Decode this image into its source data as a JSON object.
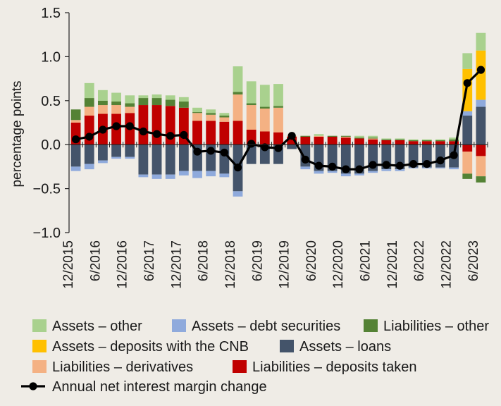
{
  "chart_data": {
    "type": "bar",
    "stacked": true,
    "ylabel": "percentage points",
    "ylim": [
      -1.0,
      1.5
    ],
    "yticks": [
      -1.0,
      -0.5,
      0.0,
      0.5,
      1.0,
      1.5
    ],
    "ytick_labels": [
      "−1.0",
      "−0.5",
      "0.0",
      "0.5",
      "1.0",
      "1.5"
    ],
    "categories": [
      "12/2015",
      "3/2016",
      "6/2016",
      "9/2016",
      "12/2016",
      "3/2017",
      "6/2017",
      "9/2017",
      "12/2017",
      "3/2018",
      "6/2018",
      "9/2018",
      "12/2018",
      "3/2019",
      "6/2019",
      "9/2019",
      "12/2019",
      "3/2020",
      "6/2020",
      "9/2020",
      "12/2020",
      "3/2021",
      "6/2021",
      "9/2021",
      "12/2021",
      "3/2022",
      "6/2022",
      "9/2022",
      "12/2022",
      "3/2023",
      "6/2023"
    ],
    "xtick_labels": [
      "12/2015",
      "6/2016",
      "12/2016",
      "6/2017",
      "12/2017",
      "6/2018",
      "12/2018",
      "6/2019",
      "12/2019",
      "6/2020",
      "12/2020",
      "6/2021",
      "12/2021",
      "6/2022",
      "12/2022",
      "6/2023"
    ],
    "series": [
      {
        "name": "Liabilities – deposits taken",
        "color": "#c00000",
        "values": [
          0.25,
          0.33,
          0.35,
          0.35,
          0.36,
          0.45,
          0.45,
          0.44,
          0.42,
          0.27,
          0.27,
          0.26,
          0.27,
          0.17,
          0.15,
          0.14,
          0.09,
          0.09,
          0.09,
          0.09,
          0.08,
          0.07,
          0.06,
          0.05,
          0.05,
          0.04,
          0.04,
          0.04,
          0.04,
          -0.08,
          -0.13
        ]
      },
      {
        "name": "Liabilities – derivatives",
        "color": "#f4b183",
        "values": [
          0.03,
          0.1,
          0.1,
          0.1,
          0.07,
          0.0,
          0.0,
          0.0,
          0.0,
          0.09,
          0.07,
          0.05,
          0.3,
          0.28,
          0.26,
          0.28,
          0.01,
          0.0,
          0.01,
          0.0,
          0.01,
          0.0,
          0.01,
          0.0,
          0.0,
          0.0,
          0.0,
          0.0,
          0.0,
          -0.25,
          -0.23
        ]
      },
      {
        "name": "Liabilities – other",
        "color": "#548235",
        "values": [
          0.12,
          0.1,
          0.05,
          0.04,
          0.04,
          0.08,
          0.08,
          0.07,
          0.07,
          0.01,
          0.02,
          0.02,
          0.03,
          0.02,
          0.02,
          0.02,
          0.0,
          0.01,
          0.0,
          0.01,
          0.01,
          0.01,
          0.01,
          0.01,
          0.01,
          0.01,
          0.01,
          0.01,
          0.02,
          -0.06,
          -0.07
        ]
      },
      {
        "name": "Assets – loans",
        "color": "#44546a",
        "values": [
          -0.25,
          -0.22,
          -0.18,
          -0.14,
          -0.14,
          -0.34,
          -0.34,
          -0.34,
          -0.3,
          -0.3,
          -0.3,
          -0.33,
          -0.53,
          -0.22,
          -0.22,
          -0.22,
          -0.05,
          -0.25,
          -0.3,
          -0.3,
          -0.33,
          -0.33,
          -0.3,
          -0.28,
          -0.28,
          -0.26,
          -0.26,
          -0.26,
          -0.26,
          0.33,
          0.43
        ]
      },
      {
        "name": "Assets – debt securities",
        "color": "#8faadc",
        "values": [
          -0.05,
          -0.06,
          -0.03,
          -0.02,
          -0.02,
          -0.03,
          -0.05,
          -0.05,
          -0.05,
          -0.08,
          -0.06,
          -0.04,
          -0.06,
          0.0,
          0.0,
          0.0,
          0.0,
          -0.03,
          -0.03,
          -0.02,
          -0.03,
          -0.02,
          -0.02,
          -0.02,
          -0.02,
          -0.01,
          -0.01,
          -0.01,
          -0.02,
          0.05,
          0.08
        ]
      },
      {
        "name": "Assets – deposits with the CNB",
        "color": "#ffc000",
        "values": [
          0,
          0,
          0,
          0,
          0,
          0,
          0,
          0,
          0,
          0,
          0,
          0,
          0,
          0,
          0,
          0,
          0,
          0,
          0,
          0,
          0,
          0,
          0,
          0,
          0,
          0,
          0,
          0,
          0,
          0.48,
          0.56
        ]
      },
      {
        "name": "Assets – other",
        "color": "#a9d18e",
        "values": [
          0.0,
          0.17,
          0.12,
          0.1,
          0.09,
          0.03,
          0.04,
          0.05,
          0.05,
          0.05,
          0.04,
          0.03,
          0.29,
          0.25,
          0.25,
          0.25,
          0.0,
          0.0,
          0.02,
          0.0,
          0.0,
          0.02,
          0.02,
          0.01,
          0.01,
          0.01,
          0.01,
          0.01,
          0.02,
          0.18,
          0.2
        ]
      },
      {
        "name": "Annual net interest margin change",
        "type": "line",
        "color": "#000000",
        "values": [
          0.06,
          0.09,
          0.17,
          0.21,
          0.21,
          0.15,
          0.12,
          0.1,
          0.11,
          -0.08,
          -0.07,
          -0.09,
          -0.26,
          0.01,
          -0.03,
          -0.04,
          0.1,
          -0.17,
          -0.24,
          -0.25,
          -0.28,
          -0.28,
          -0.23,
          -0.23,
          -0.24,
          -0.22,
          -0.22,
          -0.18,
          -0.12,
          0.7,
          0.85
        ]
      }
    ],
    "legend_rows": [
      [
        "Assets – other",
        "Assets – debt securities",
        "Liabilities – other"
      ],
      [
        "Assets – deposits with the CNB",
        "Assets – loans"
      ],
      [
        "Liabilities – derivatives",
        "Liabilities – deposits taken"
      ],
      [
        "Annual net interest margin change"
      ]
    ],
    "legend_placement": "bottom",
    "grid": false,
    "background": "#efece6"
  }
}
